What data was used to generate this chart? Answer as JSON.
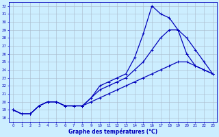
{
  "title": "Graphe des températures (°C)",
  "xlim": [
    -0.5,
    23.5
  ],
  "ylim": [
    17.5,
    32.5
  ],
  "xticks": [
    0,
    1,
    2,
    3,
    4,
    5,
    6,
    7,
    8,
    9,
    10,
    11,
    12,
    13,
    14,
    15,
    16,
    17,
    18,
    19,
    20,
    21,
    22,
    23
  ],
  "yticks": [
    18,
    19,
    20,
    21,
    22,
    23,
    24,
    25,
    26,
    27,
    28,
    29,
    30,
    31,
    32
  ],
  "line1": {
    "x": [
      0,
      1,
      2,
      3,
      4,
      5,
      6,
      7,
      8,
      9,
      10,
      11,
      12,
      13,
      14,
      15,
      16,
      17,
      18,
      19,
      20,
      21,
      22,
      23
    ],
    "y": [
      19,
      18.5,
      18.5,
      19.5,
      20,
      20,
      19.5,
      19.5,
      19.5,
      20,
      20.5,
      21,
      21.5,
      22,
      22.5,
      23,
      23.5,
      24,
      24.5,
      25,
      25,
      24.5,
      24,
      23.5
    ],
    "color": "#0000bb",
    "linewidth": 0.9,
    "marker": "+"
  },
  "line2": {
    "x": [
      0,
      1,
      2,
      3,
      4,
      5,
      6,
      7,
      8,
      9,
      10,
      11,
      12,
      13,
      14,
      15,
      16,
      17,
      18,
      19,
      20,
      21,
      22,
      23
    ],
    "y": [
      19,
      18.5,
      18.5,
      19.5,
      20,
      20,
      19.5,
      19.5,
      19.5,
      20.5,
      22,
      22.5,
      23,
      23.5,
      25.5,
      28.5,
      32,
      31,
      30.5,
      29,
      26,
      24.5,
      24,
      23.5
    ],
    "color": "#0000bb",
    "linewidth": 0.9,
    "marker": "+"
  },
  "line3": {
    "x": [
      0,
      1,
      2,
      3,
      4,
      5,
      6,
      7,
      8,
      9,
      10,
      11,
      12,
      13,
      14,
      15,
      16,
      17,
      18,
      19,
      20,
      21,
      22,
      23
    ],
    "y": [
      19,
      18.5,
      18.5,
      19.5,
      20,
      20,
      19.5,
      19.5,
      19.5,
      20.5,
      21.5,
      22,
      22.5,
      23,
      24,
      25,
      26.5,
      28,
      29,
      29,
      28,
      26.5,
      25,
      23.5
    ],
    "color": "#0000bb",
    "linewidth": 0.9,
    "marker": "+"
  },
  "bg_color": "#cceeff",
  "grid_color": "#aabbcc",
  "xlabel_color": "#0000bb",
  "axis_color": "#0000bb",
  "tick_fontsize": 4.0,
  "xlabel_fontsize": 5.5
}
